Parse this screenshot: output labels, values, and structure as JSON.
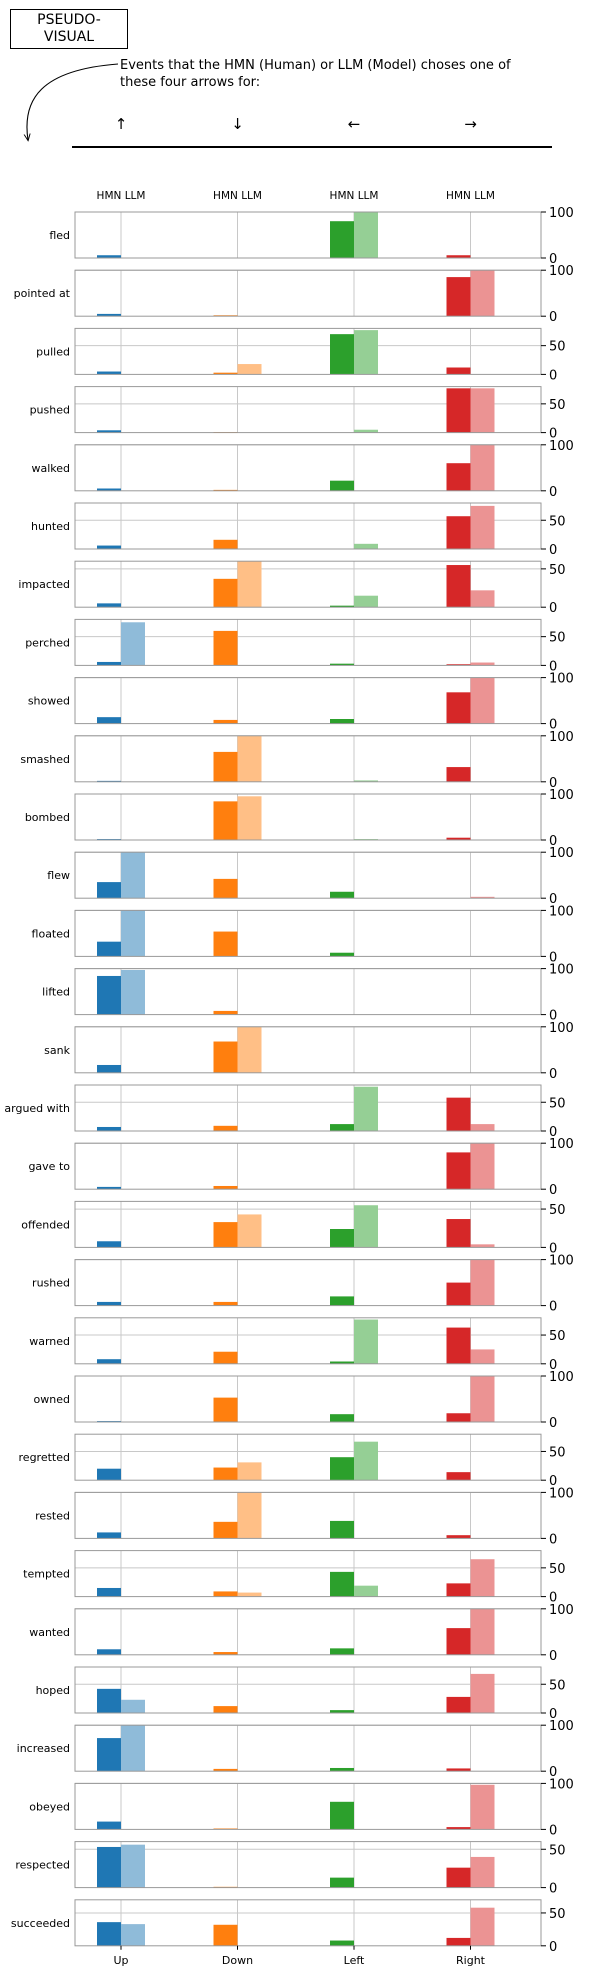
{
  "header": {
    "badge": "PSEUDO-\nVISUAL",
    "description": "Events that the HMN (Human) or LLM (Model) choses one of these four arrows for:",
    "arrows": [
      "↑",
      "↓",
      "←",
      "→"
    ]
  },
  "chart_data": {
    "type": "bar",
    "categories": [
      "Up",
      "Down",
      "Left",
      "Right"
    ],
    "group_label": "HMN LLM",
    "series_names": [
      "HMN",
      "LLM"
    ],
    "colors": {
      "HMN": [
        "#1f77b4",
        "#ff7f0e",
        "#2ca02c",
        "#d62728"
      ],
      "LLM": [
        "#8fbbd9",
        "#ffbf86",
        "#95cf95",
        "#eb9393"
      ]
    },
    "rows": [
      {
        "label": "fled",
        "ticks": [
          0,
          100
        ],
        "ymax": 100,
        "hmn": [
          6,
          1,
          80,
          6
        ],
        "llm": [
          0,
          0,
          100,
          0
        ]
      },
      {
        "label": "pointed at",
        "ticks": [
          0,
          100
        ],
        "ymax": 100,
        "hmn": [
          5,
          2,
          0,
          85
        ],
        "llm": [
          0,
          0,
          0,
          100
        ]
      },
      {
        "label": "pulled",
        "ticks": [
          0,
          50
        ],
        "ymax": 80,
        "hmn": [
          5,
          3,
          70,
          12
        ],
        "llm": [
          0,
          18,
          77,
          0
        ]
      },
      {
        "label": "pushed",
        "ticks": [
          0,
          50
        ],
        "ymax": 80,
        "hmn": [
          4,
          1,
          0,
          77
        ],
        "llm": [
          0,
          0,
          5,
          77
        ]
      },
      {
        "label": "walked",
        "ticks": [
          0,
          100
        ],
        "ymax": 100,
        "hmn": [
          5,
          2,
          22,
          60
        ],
        "llm": [
          0,
          0,
          0,
          100
        ]
      },
      {
        "label": "hunted",
        "ticks": [
          0,
          50
        ],
        "ymax": 80,
        "hmn": [
          6,
          16,
          0,
          57
        ],
        "llm": [
          0,
          0,
          9,
          75
        ]
      },
      {
        "label": "impacted",
        "ticks": [
          0,
          50
        ],
        "ymax": 60,
        "hmn": [
          5,
          37,
          2,
          55
        ],
        "llm": [
          0,
          60,
          15,
          22
        ]
      },
      {
        "label": "perched",
        "ticks": [
          0,
          50
        ],
        "ymax": 80,
        "hmn": [
          6,
          60,
          3,
          2
        ],
        "llm": [
          75,
          0,
          0,
          5
        ]
      },
      {
        "label": "showed",
        "ticks": [
          0,
          100
        ],
        "ymax": 100,
        "hmn": [
          14,
          8,
          10,
          68
        ],
        "llm": [
          0,
          0,
          0,
          100
        ]
      },
      {
        "label": "smashed",
        "ticks": [
          0,
          100
        ],
        "ymax": 100,
        "hmn": [
          2,
          65,
          0,
          32
        ],
        "llm": [
          0,
          100,
          3,
          0
        ]
      },
      {
        "label": "bombed",
        "ticks": [
          0,
          100
        ],
        "ymax": 100,
        "hmn": [
          2,
          84,
          0,
          5
        ],
        "llm": [
          0,
          95,
          2,
          0
        ]
      },
      {
        "label": "flew",
        "ticks": [
          0,
          100
        ],
        "ymax": 100,
        "hmn": [
          35,
          42,
          14,
          0
        ],
        "llm": [
          100,
          0,
          0,
          3
        ]
      },
      {
        "label": "floated",
        "ticks": [
          0,
          100
        ],
        "ymax": 100,
        "hmn": [
          32,
          54,
          8,
          0
        ],
        "llm": [
          100,
          0,
          0,
          0
        ]
      },
      {
        "label": "lifted",
        "ticks": [
          0,
          100
        ],
        "ymax": 100,
        "hmn": [
          84,
          8,
          0,
          0
        ],
        "llm": [
          97,
          0,
          0,
          0
        ]
      },
      {
        "label": "sank",
        "ticks": [
          0,
          100
        ],
        "ymax": 100,
        "hmn": [
          17,
          68,
          0,
          0
        ],
        "llm": [
          0,
          100,
          0,
          0
        ]
      },
      {
        "label": "argued with",
        "ticks": [
          0,
          50
        ],
        "ymax": 80,
        "hmn": [
          7,
          9,
          12,
          58
        ],
        "llm": [
          0,
          0,
          77,
          12
        ]
      },
      {
        "label": "gave to",
        "ticks": [
          0,
          100
        ],
        "ymax": 100,
        "hmn": [
          5,
          7,
          0,
          80
        ],
        "llm": [
          0,
          0,
          0,
          100
        ]
      },
      {
        "label": "offended",
        "ticks": [
          0,
          50
        ],
        "ymax": 60,
        "hmn": [
          8,
          33,
          24,
          37
        ],
        "llm": [
          0,
          43,
          55,
          4
        ]
      },
      {
        "label": "rushed",
        "ticks": [
          0,
          100
        ],
        "ymax": 100,
        "hmn": [
          8,
          8,
          20,
          50
        ],
        "llm": [
          0,
          0,
          0,
          100
        ]
      },
      {
        "label": "warned",
        "ticks": [
          0,
          50
        ],
        "ymax": 80,
        "hmn": [
          8,
          21,
          4,
          63
        ],
        "llm": [
          0,
          0,
          77,
          25
        ]
      },
      {
        "label": "owned",
        "ticks": [
          0,
          100
        ],
        "ymax": 100,
        "hmn": [
          2,
          53,
          17,
          19
        ],
        "llm": [
          0,
          0,
          0,
          100
        ]
      },
      {
        "label": "regretted",
        "ticks": [
          0,
          50
        ],
        "ymax": 80,
        "hmn": [
          20,
          22,
          40,
          14
        ],
        "llm": [
          0,
          31,
          67,
          0
        ]
      },
      {
        "label": "rested",
        "ticks": [
          0,
          100
        ],
        "ymax": 100,
        "hmn": [
          13,
          36,
          38,
          7
        ],
        "llm": [
          0,
          100,
          0,
          0
        ]
      },
      {
        "label": "tempted",
        "ticks": [
          0,
          50
        ],
        "ymax": 80,
        "hmn": [
          15,
          9,
          43,
          23
        ],
        "llm": [
          0,
          7,
          19,
          65
        ]
      },
      {
        "label": "wanted",
        "ticks": [
          0,
          100
        ],
        "ymax": 100,
        "hmn": [
          12,
          6,
          14,
          58
        ],
        "llm": [
          0,
          0,
          0,
          100
        ]
      },
      {
        "label": "hoped",
        "ticks": [
          0,
          50
        ],
        "ymax": 80,
        "hmn": [
          42,
          12,
          5,
          28
        ],
        "llm": [
          23,
          0,
          0,
          68
        ]
      },
      {
        "label": "increased",
        "ticks": [
          0,
          100
        ],
        "ymax": 100,
        "hmn": [
          72,
          5,
          7,
          6
        ],
        "llm": [
          100,
          0,
          0,
          0
        ]
      },
      {
        "label": "obeyed",
        "ticks": [
          0,
          100
        ],
        "ymax": 100,
        "hmn": [
          17,
          2,
          60,
          5
        ],
        "llm": [
          0,
          0,
          0,
          97
        ]
      },
      {
        "label": "respected",
        "ticks": [
          0,
          50
        ],
        "ymax": 60,
        "hmn": [
          53,
          1,
          13,
          26
        ],
        "llm": [
          56,
          0,
          0,
          40
        ]
      },
      {
        "label": "succeeded",
        "ticks": [
          0,
          50
        ],
        "ymax": 70,
        "hmn": [
          36,
          32,
          8,
          12
        ],
        "llm": [
          33,
          0,
          0,
          58
        ]
      }
    ]
  }
}
